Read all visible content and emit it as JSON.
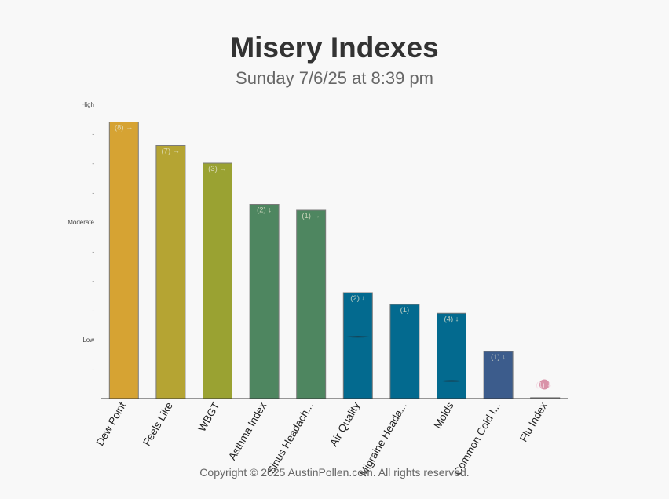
{
  "page": {
    "title": "Misery Indexes",
    "subtitle": "Sunday 7/6/25 at 8:39 pm",
    "footer": "Copyright © 2025 AustinPollen.com.  All rights reserved."
  },
  "chart_data": {
    "type": "bar",
    "ylim": [
      0,
      10
    ],
    "y_ticks": [
      {
        "value": 1,
        "label": "-"
      },
      {
        "value": 2,
        "label": "Low"
      },
      {
        "value": 3,
        "label": "-"
      },
      {
        "value": 4,
        "label": "-"
      },
      {
        "value": 5,
        "label": "-"
      },
      {
        "value": 6,
        "label": "Moderate"
      },
      {
        "value": 7,
        "label": "-"
      },
      {
        "value": 8,
        "label": "-"
      },
      {
        "value": 9,
        "label": "-"
      },
      {
        "value": 10,
        "label": "High"
      }
    ],
    "grid": false,
    "categories": [
      "Dew Point",
      "Feels Like",
      "WBGT",
      "Asthma Index",
      "Sinus Headach...",
      "Air Quality",
      "Migraine Heada...",
      "Molds",
      "Common Cold I...",
      "Flu Index"
    ],
    "values": [
      9.4,
      8.6,
      8.0,
      6.6,
      6.4,
      3.6,
      3.2,
      2.9,
      1.6,
      0.03
    ],
    "data_labels": [
      "(8) →",
      "(7) →",
      "(3) →",
      "(2) ↓",
      "(1) →",
      "(2) ↓",
      "(1)",
      "(4) ↓",
      "(1) ↓",
      "(1) ⬇"
    ],
    "markers": [
      null,
      null,
      null,
      null,
      null,
      2.1,
      null,
      0.6,
      null,
      null
    ],
    "colors": [
      "#d6a333",
      "#b5a433",
      "#9aa232",
      "#4e8660",
      "#4e8660",
      "#036a8f",
      "#036a8f",
      "#036a8f",
      "#3c5c8c",
      "#c8849c"
    ]
  }
}
